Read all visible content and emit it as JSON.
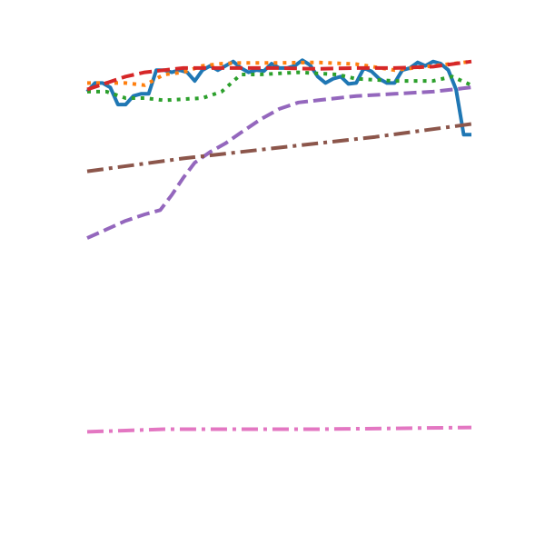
{
  "chart_data": {
    "type": "line",
    "title": "",
    "xlabel": "",
    "ylabel": "",
    "grid": false,
    "axes_visible": false,
    "legend": "none",
    "xlim": [
      0,
      100
    ],
    "ylim": [
      0,
      100
    ],
    "series": [
      {
        "color": "#1f77b4",
        "style": "solid",
        "values": [
          [
            0,
            92
          ],
          [
            2,
            94
          ],
          [
            4,
            94
          ],
          [
            6,
            93
          ],
          [
            8,
            89
          ],
          [
            10,
            89
          ],
          [
            12,
            91
          ],
          [
            14,
            91.5
          ],
          [
            16,
            91.5
          ],
          [
            18,
            97
          ],
          [
            20,
            97
          ],
          [
            22,
            96.5
          ],
          [
            24,
            97
          ],
          [
            26,
            96.5
          ],
          [
            28,
            94.5
          ],
          [
            30,
            97
          ],
          [
            32,
            98
          ],
          [
            34,
            97
          ],
          [
            36,
            98
          ],
          [
            38,
            99
          ],
          [
            40,
            97.5
          ],
          [
            42,
            96.5
          ],
          [
            44,
            97
          ],
          [
            46,
            96.8
          ],
          [
            48,
            98.5
          ],
          [
            50,
            97.5
          ],
          [
            52,
            97.5
          ],
          [
            54,
            98
          ],
          [
            56,
            99.3
          ],
          [
            58,
            98.2
          ],
          [
            60,
            95.5
          ],
          [
            62,
            94
          ],
          [
            64,
            95
          ],
          [
            66,
            95.5
          ],
          [
            68,
            93.8
          ],
          [
            70,
            94
          ],
          [
            72,
            97.5
          ],
          [
            74,
            96.7
          ],
          [
            76,
            95
          ],
          [
            78,
            94
          ],
          [
            80,
            94
          ],
          [
            82,
            97
          ],
          [
            84,
            97.5
          ],
          [
            86,
            98.8
          ],
          [
            88,
            98
          ],
          [
            90,
            99
          ],
          [
            92,
            98.5
          ],
          [
            94,
            97
          ],
          [
            96,
            92.5
          ],
          [
            98,
            82
          ],
          [
            100,
            82
          ]
        ]
      },
      {
        "color": "#ff7f0e",
        "style": "dotted",
        "values": [
          [
            0,
            94
          ],
          [
            5,
            94
          ],
          [
            10,
            94
          ],
          [
            15,
            93.5
          ],
          [
            20,
            96
          ],
          [
            25,
            96.5
          ],
          [
            30,
            98
          ],
          [
            35,
            98.5
          ],
          [
            40,
            98.7
          ],
          [
            50,
            98.7
          ],
          [
            60,
            98.8
          ],
          [
            70,
            98.4
          ],
          [
            80,
            97
          ],
          [
            90,
            98
          ],
          [
            100,
            99
          ]
        ]
      },
      {
        "color": "#2ca02c",
        "style": "dotted",
        "values": [
          [
            0,
            92
          ],
          [
            5,
            92
          ],
          [
            10,
            90.5
          ],
          [
            15,
            90.5
          ],
          [
            20,
            90
          ],
          [
            30,
            90.5
          ],
          [
            35,
            92
          ],
          [
            40,
            96
          ],
          [
            45,
            96
          ],
          [
            55,
            96.5
          ],
          [
            65,
            96
          ],
          [
            70,
            95
          ],
          [
            80,
            94.5
          ],
          [
            90,
            94.5
          ],
          [
            95,
            95.5
          ],
          [
            100,
            93.5
          ]
        ]
      },
      {
        "color": "#d62728",
        "style": "dashed",
        "values": [
          [
            0,
            92.5
          ],
          [
            5,
            94
          ],
          [
            10,
            95.5
          ],
          [
            15,
            96.5
          ],
          [
            20,
            97
          ],
          [
            25,
            97.5
          ],
          [
            30,
            97.5
          ],
          [
            40,
            97.5
          ],
          [
            50,
            97.5
          ],
          [
            60,
            97.3
          ],
          [
            70,
            97.5
          ],
          [
            80,
            97.5
          ],
          [
            90,
            97.8
          ],
          [
            100,
            99
          ]
        ]
      },
      {
        "color": "#9467bd",
        "style": "dashed",
        "values": [
          [
            0,
            58
          ],
          [
            5,
            60
          ],
          [
            10,
            62
          ],
          [
            15,
            63.5
          ],
          [
            19,
            64.5
          ],
          [
            22,
            68
          ],
          [
            25,
            72
          ],
          [
            28,
            75.5
          ],
          [
            32,
            78
          ],
          [
            36,
            80
          ],
          [
            40,
            82.5
          ],
          [
            45,
            85.5
          ],
          [
            50,
            88
          ],
          [
            55,
            89.5
          ],
          [
            60,
            90
          ],
          [
            70,
            91
          ],
          [
            80,
            91.5
          ],
          [
            90,
            92
          ],
          [
            100,
            93
          ]
        ]
      },
      {
        "color": "#8c564b",
        "style": "dashdot",
        "values": [
          [
            0,
            73.5
          ],
          [
            25,
            76.5
          ],
          [
            50,
            79
          ],
          [
            75,
            81.5
          ],
          [
            100,
            84.5
          ]
        ]
      },
      {
        "color": "#e377c2",
        "style": "dashdot",
        "values": [
          [
            0,
            13
          ],
          [
            10,
            13.3
          ],
          [
            20,
            13.6
          ],
          [
            40,
            13.6
          ],
          [
            60,
            13.6
          ],
          [
            80,
            13.8
          ],
          [
            100,
            14
          ]
        ]
      }
    ]
  }
}
